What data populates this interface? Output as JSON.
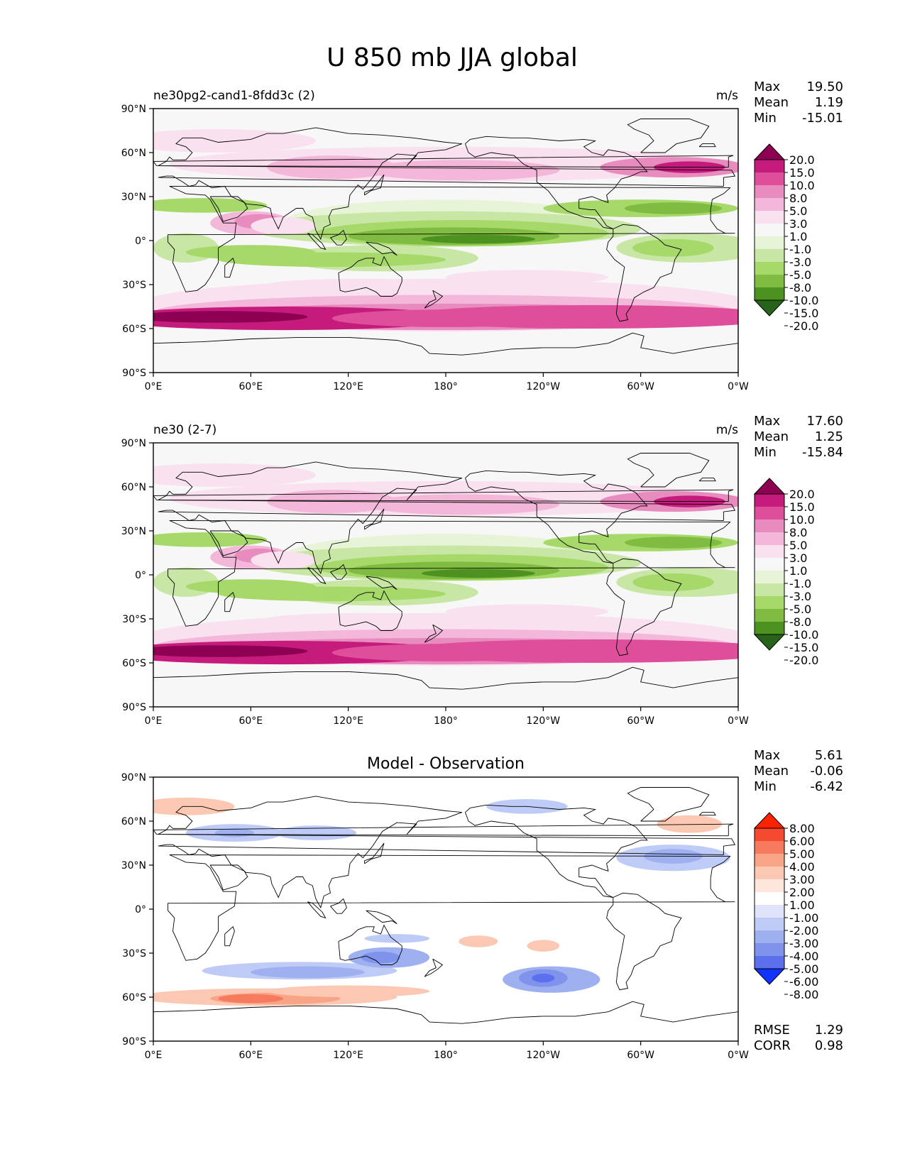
{
  "figure": {
    "title": "U 850 mb JJA global"
  },
  "axes": {
    "lat_ticks": [
      "90°N",
      "60°N",
      "30°N",
      "0°",
      "30°S",
      "60°S",
      "90°S"
    ],
    "lon_ticks": [
      "0°E",
      "60°E",
      "120°E",
      "180°",
      "120°W",
      "60°W",
      "0°W"
    ]
  },
  "colormaps": {
    "wind": [
      "#8e0152",
      "#c51b7d",
      "#de4e9b",
      "#e88bbf",
      "#f3b7da",
      "#fae1ef",
      "#f7f7f7",
      "#e8f4d8",
      "#c9e7a4",
      "#a6d96a",
      "#7fbc41",
      "#4d9221",
      "#276419"
    ],
    "diff": [
      "#ff2200",
      "#f54a2e",
      "#f67b5e",
      "#f8a487",
      "#fbc9b3",
      "#fde6dc",
      "#ffffff",
      "#dfe4fb",
      "#bfcbf7",
      "#9fb0f1",
      "#7f93ec",
      "#5c70ee",
      "#1133ff"
    ]
  },
  "panels": [
    {
      "id": "test",
      "left_title": "ne30pg2-cand1-8fdd3c (2)",
      "center_title": "",
      "units": "m/s",
      "stats": [
        {
          "label": "Max",
          "value": "19.50"
        },
        {
          "label": "Mean",
          "value": "1.19"
        },
        {
          "label": "Min",
          "value": "-15.01"
        }
      ],
      "colorbar_levels": [
        "20.0",
        "15.0",
        "10.0",
        "8.0",
        "5.0",
        "3.0",
        "1.0",
        "-1.0",
        "-3.0",
        "-5.0",
        "-8.0",
        "-10.0",
        "-15.0",
        "-20.0"
      ],
      "colormap": "wind",
      "footer": []
    },
    {
      "id": "reference",
      "left_title": "ne30 (2-7)",
      "center_title": "",
      "units": "m/s",
      "stats": [
        {
          "label": "Max",
          "value": "17.60"
        },
        {
          "label": "Mean",
          "value": "1.25"
        },
        {
          "label": "Min",
          "value": "-15.84"
        }
      ],
      "colorbar_levels": [
        "20.0",
        "15.0",
        "10.0",
        "8.0",
        "5.0",
        "3.0",
        "1.0",
        "-1.0",
        "-3.0",
        "-5.0",
        "-8.0",
        "-10.0",
        "-15.0",
        "-20.0"
      ],
      "colormap": "wind",
      "footer": []
    },
    {
      "id": "diff",
      "left_title": "",
      "center_title": "Model - Observation",
      "units": "",
      "stats": [
        {
          "label": "Max",
          "value": "5.61"
        },
        {
          "label": "Mean",
          "value": "-0.06"
        },
        {
          "label": "Min",
          "value": "-6.42"
        }
      ],
      "colorbar_levels": [
        "8.00",
        "6.00",
        "5.00",
        "4.00",
        "3.00",
        "2.00",
        "1.00",
        "-1.00",
        "-2.00",
        "-3.00",
        "-4.00",
        "-5.00",
        "-6.00",
        "-8.00"
      ],
      "colormap": "diff",
      "footer": [
        {
          "label": "RMSE",
          "value": "1.29"
        },
        {
          "label": "CORR",
          "value": "0.98"
        }
      ]
    }
  ]
}
